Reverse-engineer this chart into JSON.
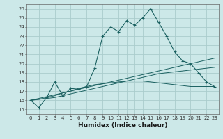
{
  "title": "",
  "xlabel": "Humidex (Indice chaleur)",
  "ylabel": "",
  "background_color": "#cce8e8",
  "grid_color": "#aacccc",
  "line_color": "#1a6060",
  "xlim": [
    -0.5,
    23.5
  ],
  "ylim": [
    14.5,
    26.5
  ],
  "yticks": [
    15,
    16,
    17,
    18,
    19,
    20,
    21,
    22,
    23,
    24,
    25,
    26
  ],
  "xticks": [
    0,
    1,
    2,
    3,
    4,
    5,
    6,
    7,
    8,
    9,
    10,
    11,
    12,
    13,
    14,
    15,
    16,
    17,
    18,
    19,
    20,
    21,
    22,
    23
  ],
  "series1": [
    16.0,
    15.2,
    16.3,
    18.0,
    16.5,
    17.3,
    17.2,
    17.5,
    19.5,
    23.0,
    24.0,
    23.5,
    24.7,
    24.2,
    25.0,
    26.0,
    24.5,
    23.0,
    21.3,
    20.3,
    20.0,
    19.0,
    18.0,
    17.5
  ],
  "series2": [
    16.0,
    16.2,
    16.4,
    16.6,
    16.8,
    17.0,
    17.2,
    17.4,
    17.6,
    17.8,
    18.0,
    18.2,
    18.4,
    18.6,
    18.8,
    19.0,
    19.2,
    19.4,
    19.6,
    19.8,
    20.0,
    20.2,
    20.4,
    20.6
  ],
  "series3": [
    16.0,
    16.1,
    16.2,
    16.3,
    16.5,
    16.7,
    16.9,
    17.1,
    17.3,
    17.5,
    17.7,
    17.9,
    18.1,
    18.3,
    18.5,
    18.7,
    18.9,
    19.0,
    19.1,
    19.2,
    19.3,
    19.4,
    19.5,
    19.6
  ],
  "series4": [
    16.0,
    16.1,
    16.3,
    16.5,
    16.8,
    17.0,
    17.3,
    17.5,
    17.7,
    17.8,
    17.9,
    18.0,
    18.1,
    18.1,
    18.1,
    18.0,
    17.9,
    17.8,
    17.7,
    17.6,
    17.5,
    17.5,
    17.5,
    17.5
  ]
}
